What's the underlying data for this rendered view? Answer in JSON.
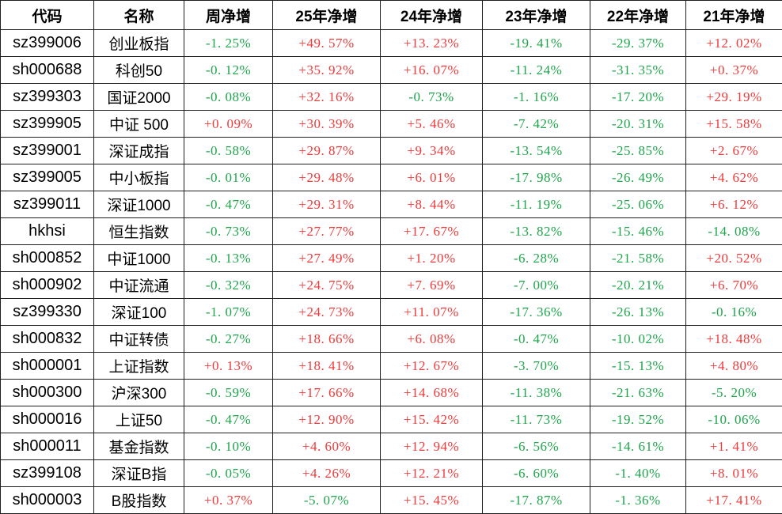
{
  "colors": {
    "positive_red": "#ef3a3a",
    "negative_green": "#1ea54c",
    "grid_line": "#1f1f1f",
    "header_text": "#000000",
    "background": "#ffffff"
  },
  "chart_data": {
    "type": "table",
    "title": "",
    "columns": [
      "代码",
      "名称",
      "周净增",
      "25年净增",
      "24年净增",
      "23年净增",
      "22年净增",
      "21年净增"
    ],
    "column_keys": [
      "code",
      "name",
      "week-change",
      "y2025-change",
      "y2024-change",
      "y2023-change",
      "y2022-change",
      "y2021-change"
    ],
    "color_rule": "values starting with + are red (up), values starting with - are green (down)",
    "rows": [
      [
        "sz399006",
        "创业板指",
        "-1.25%",
        "+49.57%",
        "+13.23%",
        "-19.41%",
        "-29.37%",
        "+12.02%"
      ],
      [
        "sh000688",
        "科创50",
        "-0.12%",
        "+35.92%",
        "+16.07%",
        "-11.24%",
        "-31.35%",
        "+0.37%"
      ],
      [
        "sz399303",
        "国证2000",
        "-0.08%",
        "+32.16%",
        "-0.73%",
        "-1.16%",
        "-17.20%",
        "+29.19%"
      ],
      [
        "sz399905",
        "中证 500",
        "+0.09%",
        "+30.39%",
        "+5.46%",
        "-7.42%",
        "-20.31%",
        "+15.58%"
      ],
      [
        "sz399001",
        "深证成指",
        "-0.58%",
        "+29.87%",
        "+9.34%",
        "-13.54%",
        "-25.85%",
        "+2.67%"
      ],
      [
        "sz399005",
        "中小板指",
        "-0.01%",
        "+29.48%",
        "+6.01%",
        "-17.98%",
        "-26.49%",
        "+4.62%"
      ],
      [
        "sz399011",
        "深证1000",
        "-0.47%",
        "+29.31%",
        "+8.44%",
        "-11.19%",
        "-25.06%",
        "+6.12%"
      ],
      [
        "hkhsi",
        "恒生指数",
        "-0.73%",
        "+27.77%",
        "+17.67%",
        "-13.82%",
        "-15.46%",
        "-14.08%"
      ],
      [
        "sh000852",
        "中证1000",
        "-0.13%",
        "+27.49%",
        "+1.20%",
        "-6.28%",
        "-21.58%",
        "+20.52%"
      ],
      [
        "sh000902",
        "中证流通",
        "-0.32%",
        "+24.75%",
        "+7.69%",
        "-7.00%",
        "-20.21%",
        "+6.70%"
      ],
      [
        "sz399330",
        "深证100",
        "-1.07%",
        "+24.73%",
        "+11.07%",
        "-17.36%",
        "-26.13%",
        "-0.16%"
      ],
      [
        "sh000832",
        "中证转债",
        "-0.27%",
        "+18.66%",
        "+6.08%",
        "-0.47%",
        "-10.02%",
        "+18.48%"
      ],
      [
        "sh000001",
        "上证指数",
        "+0.13%",
        "+18.41%",
        "+12.67%",
        "-3.70%",
        "-15.13%",
        "+4.80%"
      ],
      [
        "sh000300",
        "沪深300",
        "-0.59%",
        "+17.66%",
        "+14.68%",
        "-11.38%",
        "-21.63%",
        "-5.20%"
      ],
      [
        "sh000016",
        "上证50",
        "-0.47%",
        "+12.90%",
        "+15.42%",
        "-11.73%",
        "-19.52%",
        "-10.06%"
      ],
      [
        "sh000011",
        "基金指数",
        "-0.10%",
        "+4.60%",
        "+12.94%",
        "-6.56%",
        "-14.61%",
        "+1.41%"
      ],
      [
        "sz399108",
        "深证B指",
        "-0.05%",
        "+4.26%",
        "+12.21%",
        "-6.60%",
        "-1.40%",
        "+8.01%"
      ],
      [
        "sh000003",
        "B股指数",
        "+0.37%",
        "-5.07%",
        "+15.45%",
        "-17.87%",
        "-1.36%",
        "+17.41%"
      ]
    ]
  }
}
